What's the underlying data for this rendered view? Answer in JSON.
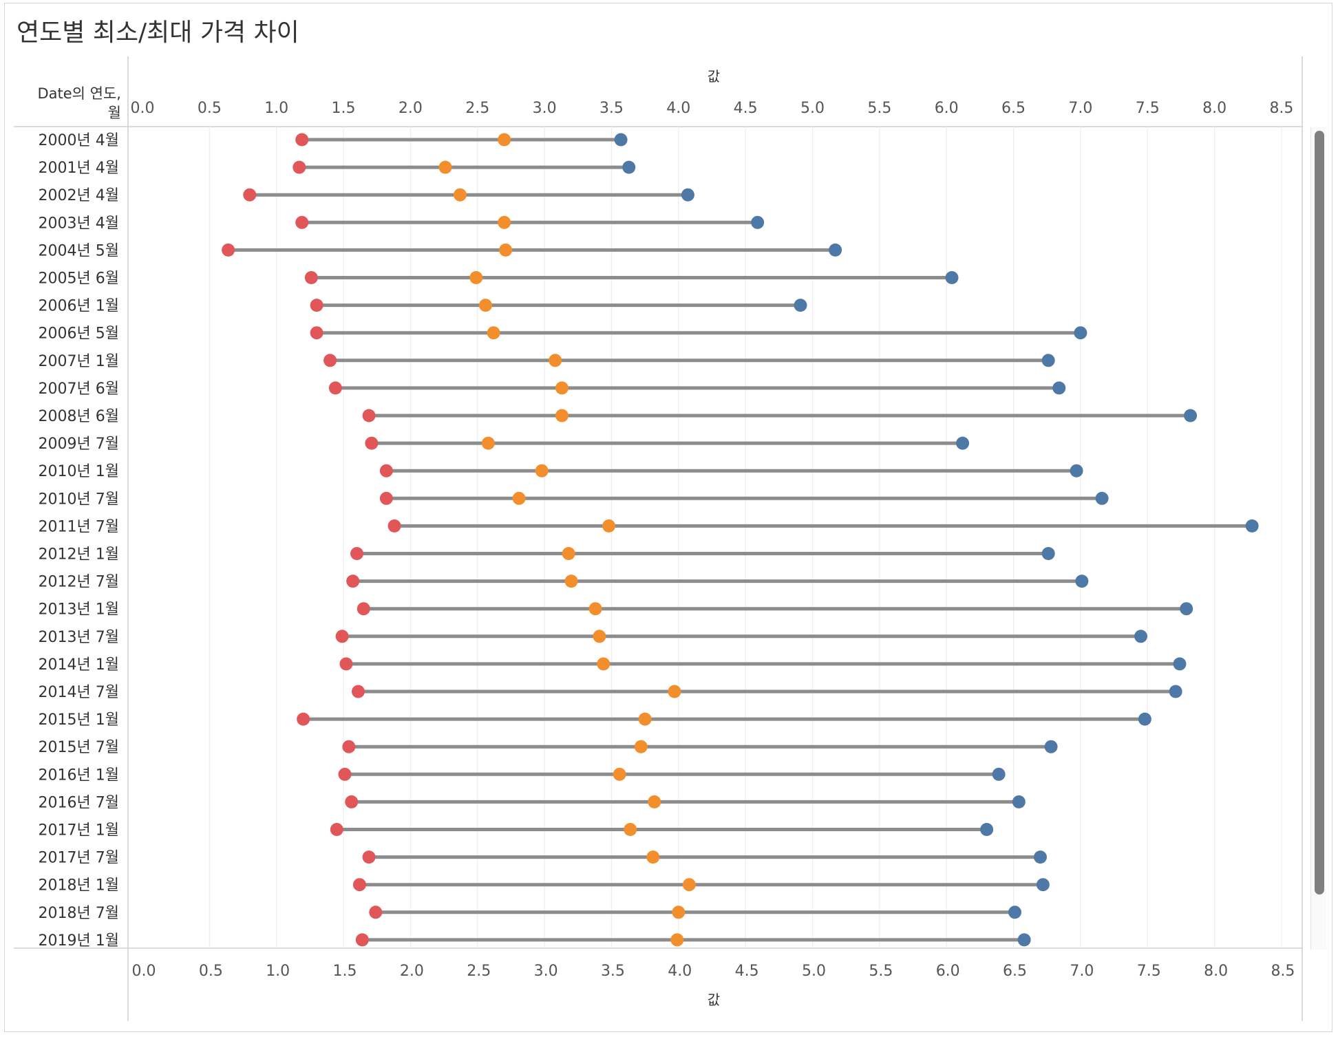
{
  "title": "연도별 최소/최대 가격 차이",
  "row_header": [
    "Date의 연도,",
    "월"
  ],
  "chart_data": {
    "type": "dumbbell",
    "title": "연도별 최소/최대 가격 차이",
    "xlabel": "값",
    "ylabel": "Date의 연도, 월",
    "xlim": [
      -0.1,
      8.75
    ],
    "xticks": [
      "0.0",
      "0.5",
      "1.0",
      "1.5",
      "2.0",
      "2.5",
      "3.0",
      "3.5",
      "4.0",
      "4.5",
      "5.0",
      "5.5",
      "6.0",
      "6.5",
      "7.0",
      "7.5",
      "8.0",
      "8.5"
    ],
    "grid": true,
    "categories": [
      "2000년 4월",
      "2001년 4월",
      "2002년 4월",
      "2003년 4월",
      "2004년 5월",
      "2005년 6월",
      "2006년 1월",
      "2006년 5월",
      "2007년 1월",
      "2007년 6월",
      "2008년 6월",
      "2009년 7월",
      "2010년 1월",
      "2010년 7월",
      "2011년 7월",
      "2012년 1월",
      "2012년 7월",
      "2013년 1월",
      "2013년 7월",
      "2014년 1월",
      "2014년 7월",
      "2015년 1월",
      "2015년 7월",
      "2016년 1월",
      "2016년 7월",
      "2017년 1월",
      "2017년 7월",
      "2018년 1월",
      "2018년 7월",
      "2019년 1월"
    ],
    "series": [
      {
        "color": "#e15759",
        "values": [
          1.19,
          1.17,
          0.8,
          1.19,
          0.64,
          1.26,
          1.3,
          1.3,
          1.4,
          1.44,
          1.69,
          1.71,
          1.82,
          1.82,
          1.88,
          1.6,
          1.57,
          1.65,
          1.49,
          1.52,
          1.61,
          1.2,
          1.54,
          1.51,
          1.56,
          1.45,
          1.69,
          1.62,
          1.74,
          1.64
        ]
      },
      {
        "color": "#f28e2b",
        "values": [
          2.7,
          2.26,
          2.37,
          2.7,
          2.71,
          2.49,
          2.56,
          2.62,
          3.08,
          3.13,
          3.13,
          2.58,
          2.98,
          2.81,
          3.48,
          3.18,
          3.2,
          3.38,
          3.41,
          3.44,
          3.97,
          3.75,
          3.72,
          3.56,
          3.82,
          3.64,
          3.81,
          4.08,
          4.0,
          3.99
        ]
      },
      {
        "color": "#4e79a7",
        "values": [
          3.57,
          3.63,
          4.07,
          4.59,
          5.17,
          6.04,
          4.91,
          7.0,
          6.76,
          6.84,
          7.82,
          6.12,
          6.97,
          7.16,
          8.28,
          6.76,
          7.01,
          7.79,
          7.45,
          7.74,
          7.71,
          7.48,
          6.78,
          6.39,
          6.54,
          6.3,
          6.7,
          6.72,
          6.51,
          6.58
        ]
      }
    ]
  }
}
